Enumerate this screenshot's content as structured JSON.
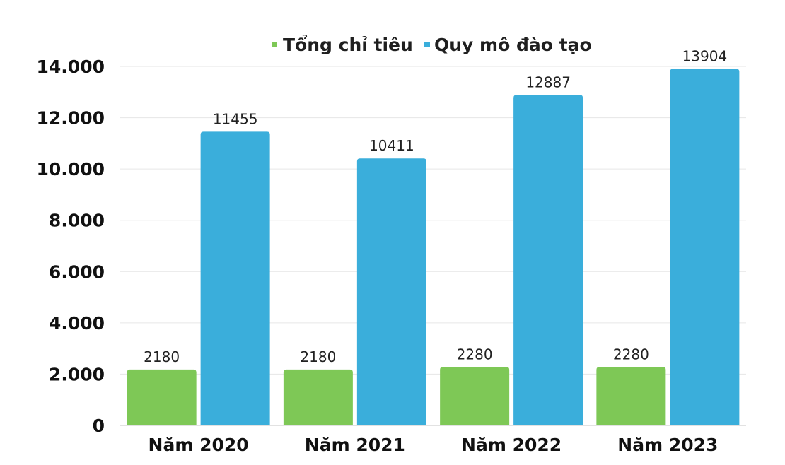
{
  "chart_data": {
    "type": "bar",
    "categories": [
      "Năm 2020",
      "Năm 2021",
      "Năm 2022",
      "Năm 2023"
    ],
    "series": [
      {
        "name": "Tổng chỉ tiêu",
        "values": [
          2180,
          2180,
          2280,
          2280
        ],
        "color": "#7ec856",
        "labels": [
          "2180",
          "2180",
          "2280",
          "2280"
        ]
      },
      {
        "name": "Quy mô đào tạo",
        "values": [
          11455,
          10411,
          12887,
          13904
        ],
        "color": "#3aaedb",
        "labels": [
          "11455",
          "10411",
          "12887",
          "13904"
        ]
      }
    ],
    "yticks": [
      0,
      2000,
      4000,
      6000,
      8000,
      10000,
      12000,
      14000
    ],
    "ytick_labels": [
      "0",
      "2.000",
      "4.000",
      "6.000",
      "8.000",
      "10.000",
      "12.000",
      "14.000"
    ],
    "ylim": [
      0,
      14000
    ],
    "grid": true,
    "legend_position": "top",
    "title": "",
    "xlabel": "",
    "ylabel": ""
  }
}
